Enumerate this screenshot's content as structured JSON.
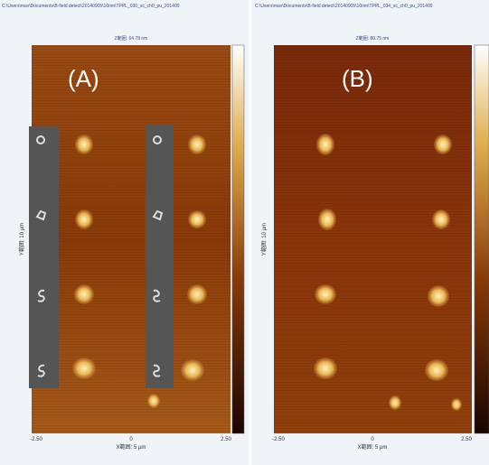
{
  "panels": [
    {
      "path": "C:\\Users\\mav\\Documents\\B-field detect\\20140905\\10nm\\TPPL_030_sc_ch0_pu_201409",
      "z_range": "Z範囲: 64.78 nm",
      "label": "(A)",
      "x_ticks": [
        "-2.50",
        "0",
        "2.50"
      ],
      "x_label": "X範囲: 5 µm",
      "y_label": "Y範囲: 10 µm"
    },
    {
      "path": "C:\\Users\\mav\\Documents\\B-field detect\\20140905\\10nm\\TPPL_034_sc_ch0_pu_201409",
      "z_range": "Z範囲: 80.75 nm",
      "label": "(B)",
      "x_ticks": [
        "-2.50",
        "0",
        "2.50"
      ],
      "x_label": "X範囲: 5 µm",
      "y_label": "Y範囲: 10 µm"
    }
  ]
}
